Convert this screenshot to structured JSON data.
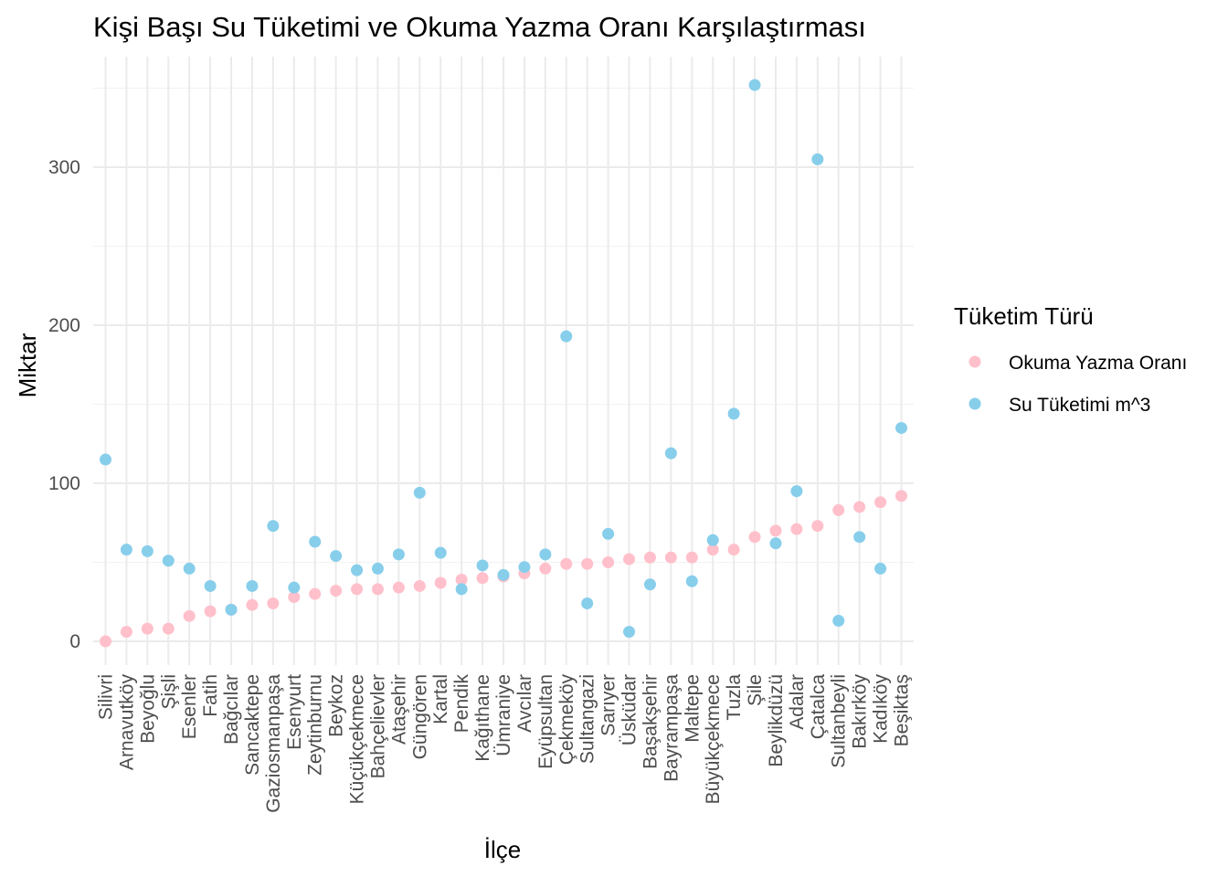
{
  "chart_data": {
    "type": "scatter",
    "title": "Kişi Başı Su Tüketimi ve Okuma Yazma Oranı Karşılaştırması",
    "xlabel": "İlçe",
    "ylabel": "Miktar",
    "ylim": [
      -15,
      355
    ],
    "yticks": [
      0,
      100,
      200,
      300
    ],
    "grid": true,
    "legend": {
      "title": "Tüketim Türü",
      "position": "right"
    },
    "categories": [
      "Silivri",
      "Arnavutköy",
      "Beyoğlu",
      "Şişli",
      "Esenler",
      "Fatih",
      "Bağcılar",
      "Sancaktepe",
      "Gaziosmanpaşa",
      "Esenyurt",
      "Zeytinburnu",
      "Beykoz",
      "Küçükçekmece",
      "Bahçelievler",
      "Ataşehir",
      "Güngören",
      "Kartal",
      "Pendik",
      "Kağıthane",
      "Ümraniye",
      "Avcılar",
      "Eyüpsultan",
      "Çekmeköy",
      "Sultangazi",
      "Sarıyer",
      "Üsküdar",
      "Başakşehir",
      "Bayrampaşa",
      "Maltepe",
      "Büyükçekmece",
      "Tuzla",
      "Şile",
      "Beylikdüzü",
      "Adalar",
      "Çatalca",
      "Sultanbeyli",
      "Bakırköy",
      "Kadıköy",
      "Beşiktaş"
    ],
    "series": [
      {
        "name": "Okuma Yazma Oranı",
        "color": "#ffc0cb",
        "values": [
          0,
          6,
          8,
          8,
          16,
          19,
          20,
          23,
          24,
          28,
          30,
          32,
          33,
          33,
          34,
          35,
          37,
          39,
          40,
          41,
          43,
          46,
          49,
          49,
          50,
          52,
          53,
          53,
          53,
          58,
          58,
          66,
          70,
          71,
          73,
          83,
          85,
          88,
          92
        ]
      },
      {
        "name": "Su Tüketimi m^3",
        "color": "#87ceeb",
        "values": [
          115,
          58,
          57,
          51,
          46,
          35,
          20,
          35,
          73,
          34,
          63,
          54,
          45,
          46,
          55,
          94,
          56,
          33,
          48,
          42,
          47,
          55,
          193,
          24,
          68,
          6,
          36,
          119,
          38,
          64,
          144,
          352,
          62,
          95,
          305,
          13,
          66,
          46,
          135
        ]
      }
    ]
  }
}
